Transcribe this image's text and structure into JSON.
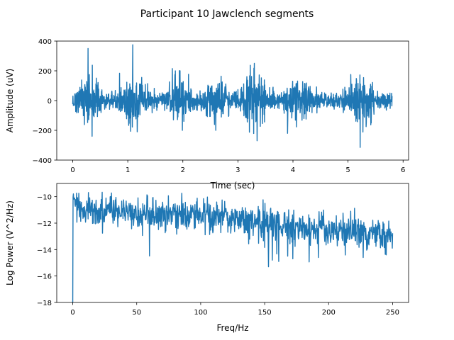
{
  "figure": {
    "suptitle": "Participant 10 Jawclench segments"
  },
  "chart_data": [
    {
      "type": "line",
      "xlabel": "Time (sec)",
      "ylabel": "Amplitude (uV)",
      "xlim": [
        -0.29,
        6.1
      ],
      "ylim": [
        -400,
        400
      ],
      "xticks": [
        0,
        1,
        2,
        3,
        4,
        5,
        6
      ],
      "yticks": [
        -400,
        -200,
        0,
        200,
        400
      ],
      "grid": false,
      "line_color": "#1f77b4",
      "duration": 5.8,
      "bursts": [
        {
          "center": 0.3,
          "halfwidth": 0.28,
          "amplitude": 95
        },
        {
          "center": 1.1,
          "halfwidth": 0.28,
          "amplitude": 105
        },
        {
          "center": 1.95,
          "halfwidth": 0.25,
          "amplitude": 80
        },
        {
          "center": 2.6,
          "halfwidth": 0.3,
          "amplitude": 70
        },
        {
          "center": 3.3,
          "halfwidth": 0.3,
          "amplitude": 100
        },
        {
          "center": 4.15,
          "halfwidth": 0.35,
          "amplitude": 65
        },
        {
          "center": 5.25,
          "halfwidth": 0.3,
          "amplitude": 95
        }
      ],
      "baseline_amplitude": 30,
      "peaks": [
        {
          "x": 0.28,
          "y": 350
        },
        {
          "x": 0.35,
          "y": -240
        },
        {
          "x": 1.09,
          "y": 375
        },
        {
          "x": 1.17,
          "y": -210
        },
        {
          "x": 1.95,
          "y": 200
        },
        {
          "x": 1.99,
          "y": -200
        },
        {
          "x": 2.6,
          "y": -200
        },
        {
          "x": 3.3,
          "y": 250
        },
        {
          "x": 3.35,
          "y": -270
        },
        {
          "x": 3.9,
          "y": -220
        },
        {
          "x": 5.22,
          "y": -315
        },
        {
          "x": 5.05,
          "y": 175
        }
      ]
    },
    {
      "type": "line",
      "xlabel": "Freq/Hz",
      "ylabel": "Log Power (V^2/Hz)",
      "xlim": [
        -12.5,
        262.5
      ],
      "ylim": [
        -18,
        -9
      ],
      "xticks": [
        0,
        50,
        100,
        150,
        200,
        250
      ],
      "yticks": [
        -18,
        -16,
        -14,
        -12,
        -10
      ],
      "grid": false,
      "line_color": "#1f77b4",
      "trend": [
        {
          "f": 1,
          "logp": -9.9
        },
        {
          "f": 3,
          "logp": -10.6
        },
        {
          "f": 10,
          "logp": -11.2
        },
        {
          "f": 30,
          "logp": -10.9
        },
        {
          "f": 50,
          "logp": -11.2
        },
        {
          "f": 100,
          "logp": -11.3
        },
        {
          "f": 150,
          "logp": -12.0
        },
        {
          "f": 200,
          "logp": -12.5
        },
        {
          "f": 250,
          "logp": -12.9
        }
      ],
      "noise_amplitude": 0.6,
      "dips": [
        {
          "f": 0.3,
          "logp": -18
        },
        {
          "f": 153,
          "logp": -15.3
        },
        {
          "f": 156,
          "logp": -14.8
        },
        {
          "f": 161,
          "logp": -14.9
        },
        {
          "f": 168,
          "logp": -14.5
        },
        {
          "f": 172,
          "logp": -14.7
        },
        {
          "f": 192,
          "logp": -14.6
        },
        {
          "f": 227,
          "logp": -14.6
        },
        {
          "f": 245,
          "logp": -14.4
        }
      ]
    }
  ]
}
